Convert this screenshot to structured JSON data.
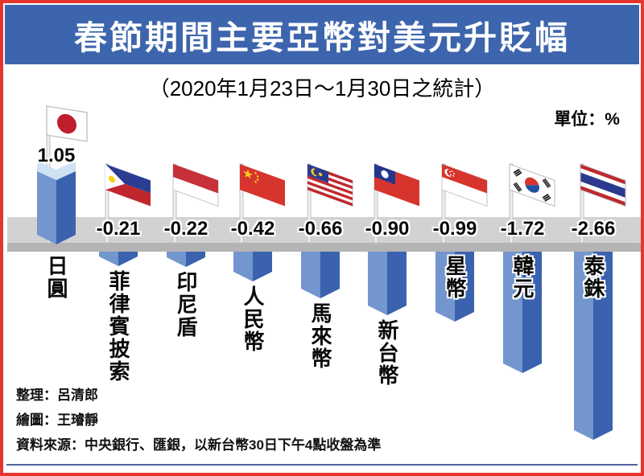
{
  "header": {
    "title": "春節期間主要亞幣對美元升貶幅",
    "subtitle": "（2020年1月23日～1月30日之統計）",
    "unit_label": "單位：%",
    "banner_color": "#3d65ad"
  },
  "footer": {
    "lines": [
      "整理：呂清郎",
      "繪圖：王璿靜",
      "資料來源：中央銀行、匯銀，以新台幣30日下午4點收盤為準"
    ]
  },
  "frame": {
    "border_color": "#e5352e",
    "bottom_rule_color": "#51619f"
  },
  "chart_data": {
    "type": "bar",
    "title": "春節期間主要亞幣對美元升貶幅",
    "subtitle": "（2020年1月23日～1月30日之統計）",
    "unit": "%",
    "categories": [
      "日圓",
      "菲律賓披索",
      "印尼盾",
      "人民幣",
      "馬來幣",
      "新台幣",
      "星幣",
      "韓元",
      "泰銖"
    ],
    "values": [
      1.05,
      -0.21,
      -0.22,
      -0.42,
      -0.66,
      -0.9,
      -0.99,
      -1.72,
      -2.66
    ],
    "value_labels": [
      "1.05",
      "-0.21",
      "-0.22",
      "-0.42",
      "-0.66",
      "-0.90",
      "-0.99",
      "-1.72",
      "-2.66"
    ],
    "flags": [
      "japan-flag-icon",
      "philippines-flag-icon",
      "indonesia-flag-icon",
      "china-flag-icon",
      "malaysia-flag-icon",
      "taiwan-flag-icon",
      "singapore-flag-icon",
      "south-korea-flag-icon",
      "thailand-flag-icon"
    ],
    "baseline": 0,
    "legend": "none",
    "grid": "off",
    "colors": {
      "bar_light": "#7296cd",
      "bar_dark": "#3a62ae",
      "bar_top": "#cfe2f3",
      "platform": "#d2d2d2",
      "platform_edge": "#b4b4b4"
    }
  }
}
